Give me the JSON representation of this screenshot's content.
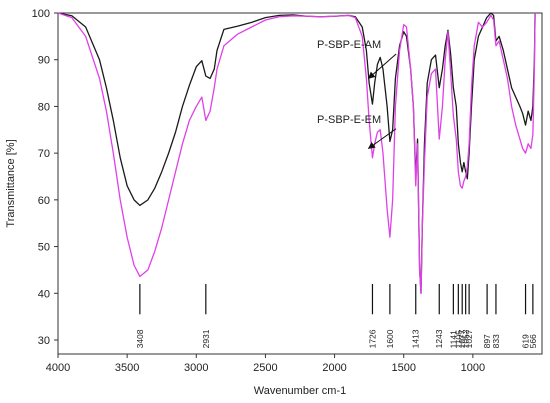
{
  "chart_data": {
    "type": "line",
    "xlabel": "Wavenumber cm-1",
    "ylabel": "Transmittance [%]",
    "xlim": [
      4000,
      500
    ],
    "ylim": [
      27,
      100
    ],
    "x_reversed": true,
    "xticks": [
      4000,
      3500,
      3000,
      2500,
      2000,
      1500,
      1000
    ],
    "yticks": [
      30,
      40,
      50,
      60,
      70,
      80,
      90,
      100
    ],
    "grid": false,
    "colors": {
      "P-SBP-E-AM": "#1a1a1a",
      "P-SBP-E-EM": "#e040e8"
    },
    "series": [
      {
        "name": "P-SBP-E-AM",
        "points": [
          [
            4000,
            100
          ],
          [
            3900,
            99.4
          ],
          [
            3800,
            97
          ],
          [
            3700,
            90
          ],
          [
            3650,
            84
          ],
          [
            3600,
            77
          ],
          [
            3550,
            69
          ],
          [
            3500,
            63
          ],
          [
            3450,
            60
          ],
          [
            3408,
            58.8
          ],
          [
            3350,
            60
          ],
          [
            3300,
            62.5
          ],
          [
            3250,
            66
          ],
          [
            3200,
            70
          ],
          [
            3150,
            74.5
          ],
          [
            3100,
            80
          ],
          [
            3050,
            84.5
          ],
          [
            3000,
            88.5
          ],
          [
            2960,
            89.8
          ],
          [
            2931,
            86.5
          ],
          [
            2900,
            86
          ],
          [
            2870,
            88
          ],
          [
            2850,
            92
          ],
          [
            2800,
            96.5
          ],
          [
            2700,
            97.2
          ],
          [
            2600,
            98
          ],
          [
            2500,
            99
          ],
          [
            2400,
            99.5
          ],
          [
            2300,
            99.6
          ],
          [
            2200,
            99.3
          ],
          [
            2100,
            99.2
          ],
          [
            2000,
            99.3
          ],
          [
            1900,
            99.5
          ],
          [
            1850,
            99.2
          ],
          [
            1800,
            97
          ],
          [
            1770,
            92
          ],
          [
            1750,
            85
          ],
          [
            1726,
            80.5
          ],
          [
            1710,
            85
          ],
          [
            1690,
            89
          ],
          [
            1670,
            90.5
          ],
          [
            1650,
            88
          ],
          [
            1620,
            80
          ],
          [
            1600,
            72.5
          ],
          [
            1580,
            75
          ],
          [
            1560,
            86
          ],
          [
            1530,
            93
          ],
          [
            1500,
            96
          ],
          [
            1480,
            95
          ],
          [
            1450,
            88
          ],
          [
            1430,
            80
          ],
          [
            1413,
            65
          ],
          [
            1400,
            73
          ],
          [
            1385,
            45
          ],
          [
            1375,
            40
          ],
          [
            1365,
            55
          ],
          [
            1350,
            72
          ],
          [
            1330,
            85
          ],
          [
            1300,
            90
          ],
          [
            1270,
            91
          ],
          [
            1243,
            84
          ],
          [
            1220,
            88
          ],
          [
            1200,
            93
          ],
          [
            1180,
            96.3
          ],
          [
            1160,
            91
          ],
          [
            1141,
            84
          ],
          [
            1120,
            80
          ],
          [
            1105,
            72
          ],
          [
            1090,
            68
          ],
          [
            1077,
            66
          ],
          [
            1065,
            68
          ],
          [
            1052,
            66
          ],
          [
            1040,
            64.5
          ],
          [
            1027,
            70
          ],
          [
            1010,
            80
          ],
          [
            990,
            90
          ],
          [
            960,
            95
          ],
          [
            930,
            97
          ],
          [
            900,
            99
          ],
          [
            870,
            100
          ],
          [
            850,
            99.5
          ],
          [
            833,
            94
          ],
          [
            810,
            95
          ],
          [
            780,
            92
          ],
          [
            750,
            88
          ],
          [
            720,
            84
          ],
          [
            690,
            82
          ],
          [
            660,
            80
          ],
          [
            640,
            78.5
          ],
          [
            619,
            76
          ],
          [
            600,
            79
          ],
          [
            580,
            77
          ],
          [
            566,
            80
          ],
          [
            555,
            90
          ],
          [
            550,
            100
          ]
        ]
      },
      {
        "name": "P-SBP-E-EM",
        "points": [
          [
            4000,
            100
          ],
          [
            3900,
            99
          ],
          [
            3800,
            95
          ],
          [
            3700,
            86
          ],
          [
            3650,
            79
          ],
          [
            3600,
            70
          ],
          [
            3550,
            60
          ],
          [
            3500,
            52
          ],
          [
            3450,
            46
          ],
          [
            3408,
            43.6
          ],
          [
            3350,
            45
          ],
          [
            3300,
            49
          ],
          [
            3250,
            54
          ],
          [
            3200,
            60
          ],
          [
            3150,
            66
          ],
          [
            3100,
            72
          ],
          [
            3050,
            77
          ],
          [
            3000,
            80
          ],
          [
            2960,
            82
          ],
          [
            2931,
            77
          ],
          [
            2900,
            79
          ],
          [
            2870,
            84
          ],
          [
            2850,
            88
          ],
          [
            2800,
            93
          ],
          [
            2700,
            95.5
          ],
          [
            2600,
            97
          ],
          [
            2500,
            98.5
          ],
          [
            2400,
            99.2
          ],
          [
            2300,
            99.4
          ],
          [
            2200,
            99.3
          ],
          [
            2100,
            99.2
          ],
          [
            2000,
            99.3
          ],
          [
            1900,
            99.5
          ],
          [
            1850,
            99
          ],
          [
            1800,
            95
          ],
          [
            1770,
            86
          ],
          [
            1750,
            77
          ],
          [
            1726,
            69
          ],
          [
            1710,
            72
          ],
          [
            1690,
            74.5
          ],
          [
            1670,
            75
          ],
          [
            1650,
            70
          ],
          [
            1620,
            58
          ],
          [
            1600,
            52
          ],
          [
            1580,
            60
          ],
          [
            1560,
            80
          ],
          [
            1530,
            92
          ],
          [
            1500,
            97.5
          ],
          [
            1480,
            97
          ],
          [
            1450,
            88
          ],
          [
            1430,
            80
          ],
          [
            1413,
            63
          ],
          [
            1400,
            72
          ],
          [
            1385,
            45
          ],
          [
            1375,
            40
          ],
          [
            1365,
            55
          ],
          [
            1350,
            68
          ],
          [
            1330,
            82
          ],
          [
            1300,
            87
          ],
          [
            1270,
            88
          ],
          [
            1243,
            73
          ],
          [
            1220,
            80
          ],
          [
            1200,
            90
          ],
          [
            1180,
            96
          ],
          [
            1160,
            87
          ],
          [
            1141,
            78
          ],
          [
            1120,
            73
          ],
          [
            1105,
            66
          ],
          [
            1090,
            63
          ],
          [
            1077,
            62.5
          ],
          [
            1065,
            64
          ],
          [
            1052,
            65
          ],
          [
            1040,
            67
          ],
          [
            1027,
            72
          ],
          [
            1010,
            84
          ],
          [
            990,
            93
          ],
          [
            960,
            98
          ],
          [
            930,
            97
          ],
          [
            900,
            98
          ],
          [
            870,
            99.5
          ],
          [
            850,
            98.5
          ],
          [
            833,
            93
          ],
          [
            810,
            94
          ],
          [
            780,
            90
          ],
          [
            750,
            86
          ],
          [
            720,
            80
          ],
          [
            690,
            76
          ],
          [
            660,
            73
          ],
          [
            640,
            71
          ],
          [
            619,
            70
          ],
          [
            600,
            72
          ],
          [
            580,
            71
          ],
          [
            566,
            74
          ],
          [
            555,
            88
          ],
          [
            550,
            100
          ]
        ]
      }
    ],
    "peak_markers": [
      {
        "x": 3408,
        "label": "3408"
      },
      {
        "x": 2931,
        "label": "2931"
      },
      {
        "x": 1726,
        "label": "1726"
      },
      {
        "x": 1600,
        "label": "1600"
      },
      {
        "x": 1413,
        "label": "1413"
      },
      {
        "x": 1243,
        "label": "1243"
      },
      {
        "x": 1141,
        "label": "1141"
      },
      {
        "x": 1105,
        "label": "1105"
      },
      {
        "x": 1077,
        "label": "1077"
      },
      {
        "x": 1052,
        "label": "1052"
      },
      {
        "x": 1027,
        "label": "1027"
      },
      {
        "x": 897,
        "label": "897"
      },
      {
        "x": 833,
        "label": "833"
      },
      {
        "x": 619,
        "label": "619"
      },
      {
        "x": 566,
        "label": "566"
      }
    ],
    "annotations": [
      {
        "text": "P-SBP-E-AM",
        "series": "P-SBP-E-AM",
        "arrow_to": [
          1726,
          86
        ]
      },
      {
        "text": "P-SBP-E-EM",
        "series": "P-SBP-E-EM",
        "arrow_to": [
          1726,
          71
        ]
      }
    ]
  }
}
